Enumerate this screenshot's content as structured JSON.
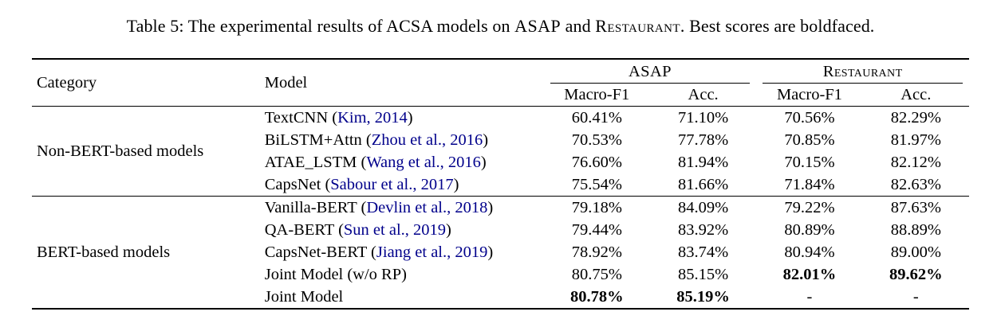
{
  "colors": {
    "citation": "#00008B",
    "text": "#000000",
    "background": "#ffffff"
  },
  "caption": {
    "prefix": "Table 5: The experimental results of ACSA models on ",
    "asap": "ASAP",
    "mid": " and ",
    "restaurant": "Restaurant",
    "suffix": ". Best scores are boldfaced."
  },
  "table": {
    "header": {
      "category": "Category",
      "model": "Model",
      "asap": "ASAP",
      "restaurant": "Restaurant",
      "macro_f1": "Macro-F1",
      "acc": "Acc."
    },
    "groups": [
      {
        "label": "Non-BERT-based models",
        "rows": [
          {
            "model": "TextCNN (",
            "cite": "Kim, 2014",
            "close": ")",
            "asap_f1": "60.41%",
            "asap_acc": "71.10%",
            "rest_f1": "70.56%",
            "rest_acc": "82.29%"
          },
          {
            "model": "BiLSTM+Attn (",
            "cite": "Zhou et al., 2016",
            "close": ")",
            "asap_f1": "70.53%",
            "asap_acc": "77.78%",
            "rest_f1": "70.85%",
            "rest_acc": "81.97%"
          },
          {
            "model": "ATAE_LSTM (",
            "cite": "Wang et al., 2016",
            "close": ")",
            "asap_f1": "76.60%",
            "asap_acc": "81.94%",
            "rest_f1": "70.15%",
            "rest_acc": "82.12%"
          },
          {
            "model": "CapsNet (",
            "cite": "Sabour et al., 2017",
            "close": ")",
            "asap_f1": "75.54%",
            "asap_acc": "81.66%",
            "rest_f1": "71.84%",
            "rest_acc": "82.63%"
          }
        ]
      },
      {
        "label": "BERT-based models",
        "rows": [
          {
            "model": "Vanilla-BERT (",
            "cite": "Devlin et al., 2018",
            "close": ")",
            "asap_f1": "79.18%",
            "asap_acc": "84.09%",
            "rest_f1": "79.22%",
            "rest_acc": "87.63%"
          },
          {
            "model": "QA-BERT (",
            "cite": "Sun et al., 2019",
            "close": ")",
            "asap_f1": "79.44%",
            "asap_acc": "83.92%",
            "rest_f1": "80.89%",
            "rest_acc": "88.89%"
          },
          {
            "model": "CapsNet-BERT (",
            "cite": "Jiang et al., 2019",
            "close": ")",
            "asap_f1": "78.92%",
            "asap_acc": "83.74%",
            "rest_f1": "80.94%",
            "rest_acc": "89.00%"
          },
          {
            "model": "Joint Model (w/o RP)",
            "cite": "",
            "close": "",
            "asap_f1": "80.75%",
            "asap_acc": "85.15%",
            "rest_f1": "82.01%",
            "rest_acc": "89.62%"
          },
          {
            "model": "Joint Model",
            "cite": "",
            "close": "",
            "asap_f1": "80.78%",
            "asap_acc": "85.19%",
            "rest_f1": "-",
            "rest_acc": "-"
          }
        ]
      }
    ]
  }
}
